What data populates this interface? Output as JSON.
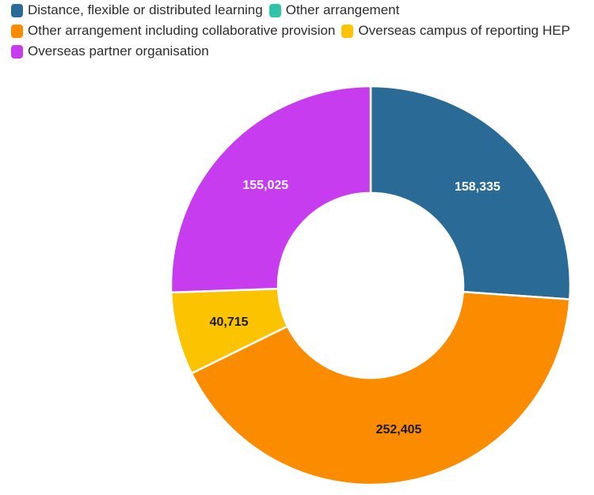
{
  "chart_data": {
    "type": "pie",
    "style": "donut",
    "legend_position": "top-left",
    "series": [
      {
        "name": "Distance, flexible or distributed learning",
        "value": 158335,
        "label": "158,335",
        "color": "#2a6a96",
        "label_color": "#ffffff"
      },
      {
        "name": "Other arrangement",
        "value": 0,
        "label": "0",
        "color": "#2ec4a7",
        "label_color": "#1a1a1a"
      },
      {
        "name": "Other arrangement including collaborative provision",
        "value": 252405,
        "label": "252,405",
        "color": "#fb8c00",
        "label_color": "#1a1a1a"
      },
      {
        "name": "Overseas campus of reporting HEP",
        "value": 40715,
        "label": "40,715",
        "color": "#fcc400",
        "label_color": "#1a1a1a"
      },
      {
        "name": "Overseas partner organisation",
        "value": 155025,
        "label": "155,025",
        "color": "#c83cf0",
        "label_color": "#ffffff"
      }
    ]
  }
}
